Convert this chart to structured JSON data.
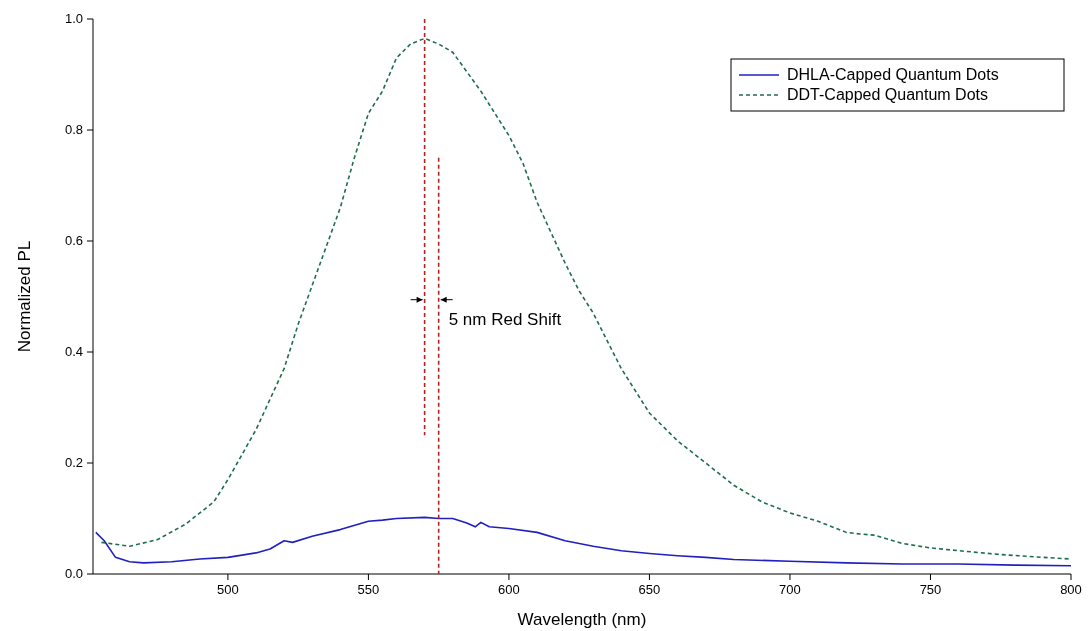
{
  "chart_data": {
    "type": "line",
    "xlabel": "Wavelength (nm)",
    "ylabel": "Normalized PL",
    "xlim": [
      452,
      800
    ],
    "ylim": [
      0,
      1
    ],
    "xticks": [
      500,
      550,
      600,
      650,
      700,
      750,
      800
    ],
    "yticks": [
      {
        "value": 0,
        "label": "0.0"
      },
      {
        "value": 0.2,
        "label": "0.2"
      },
      {
        "value": 0.4,
        "label": "0.4"
      },
      {
        "value": 0.6,
        "label": "0.6"
      },
      {
        "value": 0.8,
        "label": "0.8"
      },
      {
        "value": 1,
        "label": "1.0"
      }
    ],
    "legend": "top right",
    "grid": false,
    "annotations": [
      "5 nm Red Shift"
    ],
    "series": [
      {
        "name": "DHLA-Capped Quantum Dots",
        "color": "#2020c0",
        "line_style": "solid",
        "x": [
          453,
          456,
          460,
          465,
          470,
          480,
          490,
          500,
          510,
          515,
          520,
          523,
          530,
          540,
          550,
          555,
          560,
          570,
          575,
          580,
          585,
          588,
          590,
          593,
          600,
          610,
          620,
          630,
          640,
          650,
          660,
          670,
          680,
          700,
          720,
          740,
          760,
          780,
          800
        ],
        "values": [
          0.075,
          0.06,
          0.03,
          0.022,
          0.02,
          0.022,
          0.027,
          0.03,
          0.038,
          0.045,
          0.06,
          0.057,
          0.068,
          0.08,
          0.095,
          0.097,
          0.1,
          0.102,
          0.1,
          0.1,
          0.092,
          0.085,
          0.093,
          0.085,
          0.082,
          0.075,
          0.06,
          0.05,
          0.042,
          0.037,
          0.033,
          0.03,
          0.026,
          0.023,
          0.02,
          0.018,
          0.018,
          0.016,
          0.015
        ]
      },
      {
        "name": "DDT-Capped Quantum Dots",
        "color": "#1f6e4a",
        "line_style": "dashed",
        "x": [
          455,
          465,
          475,
          485,
          495,
          500,
          510,
          520,
          525,
          530,
          540,
          545,
          550,
          555,
          560,
          565,
          570,
          575,
          580,
          590,
          600,
          605,
          610,
          620,
          625,
          630,
          640,
          650,
          660,
          670,
          680,
          690,
          700,
          710,
          720,
          725,
          730,
          740,
          750,
          760,
          775,
          790,
          800
        ],
        "values": [
          0.057,
          0.05,
          0.062,
          0.09,
          0.13,
          0.17,
          0.26,
          0.37,
          0.45,
          0.52,
          0.66,
          0.75,
          0.83,
          0.87,
          0.93,
          0.955,
          0.965,
          0.955,
          0.94,
          0.87,
          0.79,
          0.74,
          0.67,
          0.56,
          0.51,
          0.47,
          0.37,
          0.29,
          0.24,
          0.2,
          0.16,
          0.13,
          0.11,
          0.095,
          0.075,
          0.072,
          0.07,
          0.055,
          0.047,
          0.042,
          0.035,
          0.03,
          0.027
        ]
      },
      {
        "color": "#b22222",
        "line_style": "dashed",
        "x": [
          570,
          570
        ],
        "values": [
          1.0,
          0.25
        ]
      },
      {
        "color": "#b22222",
        "line_style": "dashed",
        "x": [
          575,
          575
        ],
        "values": [
          0.75,
          0
        ]
      }
    ]
  }
}
